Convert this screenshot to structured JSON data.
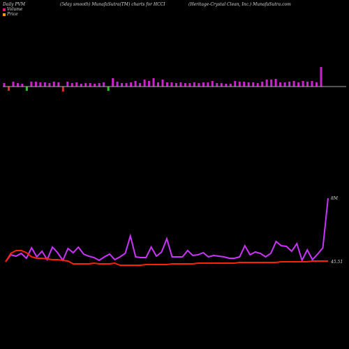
{
  "header": {
    "left": "Daily PVM",
    "middle": "(5day smooth) MunafaSutra(TM) charts for HCCI",
    "right": "(Heritage-Crystal Clean, Inc.) MunafaSutra.com"
  },
  "legend": [
    {
      "label": "Volume",
      "color": "#e8107a"
    },
    {
      "label": "Price",
      "color": "#ff9900"
    }
  ],
  "colors": {
    "bar_up": "#cc22cc",
    "bar_down": "#ff2222",
    "bar_green": "#22cc22",
    "volume_line": "#cc33ff",
    "price_line": "#ff2200",
    "baseline": "#aaaaaa"
  },
  "chart_data": {
    "type": "line",
    "bars": [
      {
        "height": 5,
        "dir": "up"
      },
      {
        "height": 6,
        "dir": "down"
      },
      {
        "height": 7,
        "dir": "up"
      },
      {
        "height": 5,
        "dir": "up"
      },
      {
        "height": 4,
        "dir": "up"
      },
      {
        "height": 6,
        "dir": "green"
      },
      {
        "height": 7,
        "dir": "up"
      },
      {
        "height": 7,
        "dir": "up"
      },
      {
        "height": 6,
        "dir": "up"
      },
      {
        "height": 6,
        "dir": "up"
      },
      {
        "height": 5,
        "dir": "up"
      },
      {
        "height": 7,
        "dir": "up"
      },
      {
        "height": 6,
        "dir": "up"
      },
      {
        "height": 7,
        "dir": "down"
      },
      {
        "height": 7,
        "dir": "up"
      },
      {
        "height": 5,
        "dir": "up"
      },
      {
        "height": 6,
        "dir": "up"
      },
      {
        "height": 4,
        "dir": "up"
      },
      {
        "height": 5,
        "dir": "up"
      },
      {
        "height": 5,
        "dir": "up"
      },
      {
        "height": 4,
        "dir": "up"
      },
      {
        "height": 5,
        "dir": "up"
      },
      {
        "height": 6,
        "dir": "up"
      },
      {
        "height": 6,
        "dir": "green"
      },
      {
        "height": 12,
        "dir": "up"
      },
      {
        "height": 7,
        "dir": "up"
      },
      {
        "height": 5,
        "dir": "up"
      },
      {
        "height": 5,
        "dir": "up"
      },
      {
        "height": 6,
        "dir": "up"
      },
      {
        "height": 8,
        "dir": "up"
      },
      {
        "height": 5,
        "dir": "up"
      },
      {
        "height": 10,
        "dir": "up"
      },
      {
        "height": 8,
        "dir": "up"
      },
      {
        "height": 12,
        "dir": "up"
      },
      {
        "height": 6,
        "dir": "up"
      },
      {
        "height": 10,
        "dir": "up"
      },
      {
        "height": 6,
        "dir": "up"
      },
      {
        "height": 6,
        "dir": "up"
      },
      {
        "height": 5,
        "dir": "up"
      },
      {
        "height": 6,
        "dir": "up"
      },
      {
        "height": 5,
        "dir": "up"
      },
      {
        "height": 5,
        "dir": "up"
      },
      {
        "height": 6,
        "dir": "up"
      },
      {
        "height": 5,
        "dir": "up"
      },
      {
        "height": 6,
        "dir": "up"
      },
      {
        "height": 6,
        "dir": "up"
      },
      {
        "height": 8,
        "dir": "up"
      },
      {
        "height": 5,
        "dir": "up"
      },
      {
        "height": 5,
        "dir": "up"
      },
      {
        "height": 4,
        "dir": "up"
      },
      {
        "height": 4,
        "dir": "up"
      },
      {
        "height": 8,
        "dir": "up"
      },
      {
        "height": 7,
        "dir": "up"
      },
      {
        "height": 7,
        "dir": "up"
      },
      {
        "height": 6,
        "dir": "up"
      },
      {
        "height": 6,
        "dir": "up"
      },
      {
        "height": 5,
        "dir": "up"
      },
      {
        "height": 7,
        "dir": "up"
      },
      {
        "height": 10,
        "dir": "up"
      },
      {
        "height": 10,
        "dir": "up"
      },
      {
        "height": 11,
        "dir": "up"
      },
      {
        "height": 6,
        "dir": "up"
      },
      {
        "height": 6,
        "dir": "up"
      },
      {
        "height": 7,
        "dir": "up"
      },
      {
        "height": 8,
        "dir": "up"
      },
      {
        "height": 6,
        "dir": "up"
      },
      {
        "height": 8,
        "dir": "up"
      },
      {
        "height": 7,
        "dir": "up"
      },
      {
        "height": 8,
        "dir": "up"
      },
      {
        "height": 6,
        "dir": "up"
      },
      {
        "height": 28,
        "dir": "up"
      }
    ],
    "volume_line": [
      375,
      365,
      367,
      363,
      370,
      355,
      368,
      360,
      372,
      354,
      362,
      373,
      356,
      362,
      354,
      364,
      367,
      369,
      373,
      368,
      364,
      372,
      368,
      363,
      338,
      368,
      369,
      369,
      354,
      367,
      361,
      342,
      368,
      368,
      368,
      359,
      366,
      365,
      362,
      368,
      366,
      367,
      368,
      370,
      370,
      368,
      352,
      365,
      361,
      363,
      368,
      363,
      346,
      352,
      353,
      360,
      349,
      373,
      358,
      372,
      364,
      355,
      284
    ],
    "price_line": [
      375,
      363,
      359,
      359,
      362,
      368,
      370,
      370,
      371,
      372,
      372,
      373,
      374,
      378,
      378,
      378,
      378,
      377,
      378,
      378,
      378,
      377,
      380,
      380,
      380,
      380,
      380,
      379,
      379,
      379,
      379,
      379,
      378,
      378,
      378,
      378,
      378,
      377,
      377,
      377,
      377,
      377,
      377,
      377,
      377,
      376,
      376,
      376,
      376,
      376,
      376,
      376,
      376,
      375,
      375,
      375,
      375,
      375,
      375,
      374,
      374,
      374,
      374
    ],
    "labels": {
      "volume_last": "8M",
      "price_last": "45.51"
    }
  }
}
